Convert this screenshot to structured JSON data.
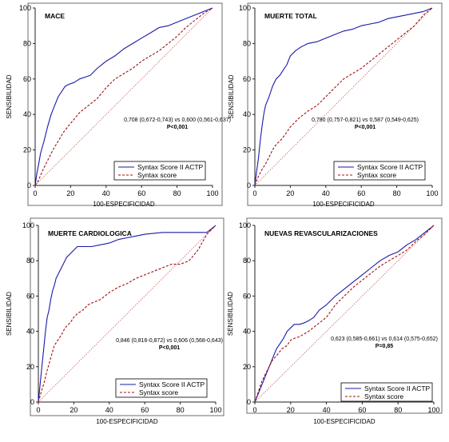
{
  "colors": {
    "actp": "#1a1aa8",
    "syntax": "#a01010",
    "diagonal": "#c86464",
    "axis": "#222222",
    "frame": "#6c6c6c"
  },
  "chart_data": [
    {
      "type": "line",
      "title": "MACE",
      "xlabel": "100-ESPECIFICIDAD",
      "ylabel": "SENSIBILIDAD",
      "xlim": [
        0,
        100
      ],
      "ylim": [
        0,
        100
      ],
      "xticks": [
        "0",
        "20",
        "40",
        "60",
        "80",
        "100"
      ],
      "yticks": [
        "0",
        "20",
        "40",
        "60",
        "80",
        "100"
      ],
      "annotation": [
        "0,708 (0,672-0,743) vs 0,600 (0,561-0,637)",
        "P<0,001"
      ],
      "legend_position": "bottom-right",
      "reference_line": [
        [
          0,
          0
        ],
        [
          100,
          100
        ]
      ],
      "series": [
        {
          "name": "Syntax Score II ACTP",
          "style": "solid",
          "x": [
            0,
            1,
            2,
            3,
            5,
            7,
            9,
            11,
            13,
            15,
            17,
            19,
            22,
            25,
            28,
            31,
            35,
            40,
            45,
            50,
            55,
            60,
            65,
            70,
            75,
            80,
            85,
            90,
            95,
            100
          ],
          "y": [
            0,
            7,
            12,
            18,
            25,
            33,
            40,
            45,
            50,
            53,
            56,
            57,
            58,
            60,
            61,
            62,
            66,
            70,
            73,
            77,
            80,
            83,
            86,
            89,
            90,
            92,
            94,
            96,
            98,
            100
          ]
        },
        {
          "name": "Syntax score",
          "style": "dashed",
          "x": [
            0,
            2,
            4,
            6,
            8,
            10,
            13,
            16,
            20,
            25,
            30,
            35,
            40,
            45,
            50,
            55,
            60,
            65,
            70,
            75,
            80,
            85,
            90,
            95,
            100
          ],
          "y": [
            0,
            3,
            8,
            12,
            16,
            20,
            25,
            30,
            35,
            41,
            45,
            49,
            55,
            60,
            63,
            66,
            70,
            73,
            76,
            80,
            84,
            89,
            93,
            97,
            100
          ]
        }
      ]
    },
    {
      "type": "line",
      "title": "MUERTE TOTAL",
      "xlabel": "100-ESPECIFICIDAD",
      "ylabel": "SENSIBILIDAD",
      "xlim": [
        0,
        100
      ],
      "ylim": [
        0,
        100
      ],
      "xticks": [
        "0",
        "20",
        "40",
        "60",
        "80",
        "100"
      ],
      "yticks": [
        "0",
        "20",
        "40",
        "60",
        "80",
        "100"
      ],
      "annotation": [
        "0,790 (0,757-0,821) vs 0,587 (0,549-0,625)",
        "P<0,001"
      ],
      "legend_position": "bottom-right",
      "reference_line": [
        [
          0,
          0
        ],
        [
          100,
          100
        ]
      ],
      "series": [
        {
          "name": "Syntax Score II ACTP",
          "style": "solid",
          "x": [
            0,
            1,
            2,
            3,
            4,
            5,
            6,
            8,
            10,
            12,
            14,
            16,
            18,
            20,
            23,
            26,
            30,
            35,
            40,
            45,
            50,
            55,
            60,
            65,
            70,
            75,
            80,
            85,
            90,
            95,
            100
          ],
          "y": [
            0,
            8,
            15,
            25,
            33,
            40,
            45,
            50,
            56,
            60,
            62,
            65,
            68,
            73,
            76,
            78,
            80,
            81,
            83,
            85,
            87,
            88,
            90,
            91,
            92,
            94,
            95,
            96,
            97,
            98,
            100
          ]
        },
        {
          "name": "Syntax score",
          "style": "dashed",
          "x": [
            0,
            2,
            4,
            6,
            8,
            10,
            12,
            15,
            18,
            20,
            25,
            30,
            35,
            40,
            45,
            50,
            55,
            60,
            65,
            70,
            75,
            80,
            85,
            90,
            95,
            100
          ],
          "y": [
            0,
            5,
            9,
            12,
            16,
            20,
            23,
            26,
            30,
            33,
            38,
            42,
            45,
            50,
            55,
            60,
            63,
            66,
            70,
            74,
            78,
            82,
            86,
            90,
            96,
            100
          ]
        }
      ]
    },
    {
      "type": "line",
      "title": "MUERTE CARDIOLOGICA",
      "xlabel": "100-ESPECIFICIDAD",
      "ylabel": "SENSIBILIDAD",
      "xlim": [
        0,
        100
      ],
      "ylim": [
        0,
        100
      ],
      "xticks": [
        "0",
        "20",
        "40",
        "60",
        "80",
        "100"
      ],
      "yticks": [
        "0",
        "20",
        "40",
        "60",
        "80",
        "100"
      ],
      "annotation": [
        "0,846 (0,816-0,872) vs 0,606 (0,568-0,643)",
        "P<0,001"
      ],
      "legend_position": "bottom-right",
      "reference_line": [
        [
          0,
          0
        ],
        [
          100,
          100
        ]
      ],
      "series": [
        {
          "name": "Syntax Score II ACTP",
          "style": "solid",
          "x": [
            0,
            1,
            2,
            3,
            4,
            5,
            6,
            7,
            8,
            9,
            10,
            12,
            14,
            16,
            18,
            20,
            22,
            25,
            30,
            35,
            40,
            45,
            50,
            55,
            60,
            70,
            80,
            90,
            95,
            100
          ],
          "y": [
            0,
            10,
            20,
            30,
            40,
            48,
            52,
            58,
            63,
            66,
            70,
            74,
            78,
            82,
            84,
            86,
            88,
            88,
            88,
            89,
            90,
            92,
            93,
            94,
            95,
            96,
            96,
            96,
            96,
            100
          ]
        },
        {
          "name": "Syntax score",
          "style": "dashed",
          "x": [
            0,
            2,
            3,
            5,
            7,
            9,
            11,
            13,
            15,
            18,
            20,
            22,
            25,
            28,
            30,
            35,
            40,
            45,
            50,
            55,
            60,
            65,
            70,
            75,
            80,
            85,
            90,
            95,
            100
          ],
          "y": [
            0,
            7,
            10,
            18,
            25,
            32,
            35,
            38,
            42,
            45,
            48,
            50,
            52,
            55,
            56,
            58,
            62,
            65,
            67,
            70,
            72,
            74,
            76,
            78,
            78,
            80,
            86,
            95,
            100
          ]
        }
      ]
    },
    {
      "type": "line",
      "title": "NUEVAS REVASCULARIZACIONES",
      "xlabel": "100-ESPECIFICIDAD",
      "ylabel": "SENSIBILIDAD",
      "xlim": [
        0,
        100
      ],
      "ylim": [
        0,
        100
      ],
      "xticks": [
        "0",
        "20",
        "40",
        "60",
        "80",
        "100"
      ],
      "yticks": [
        "0",
        "20",
        "40",
        "60",
        "80",
        "100"
      ],
      "annotation": [
        "0,623 (0,585-0,661) vs 0,614 (0,575-0,652)",
        "P=0,85"
      ],
      "legend_position": "bottom-right",
      "reference_line": [
        [
          0,
          0
        ],
        [
          100,
          100
        ]
      ],
      "series": [
        {
          "name": "Syntax Score II ACTP",
          "style": "solid",
          "x": [
            0,
            2,
            4,
            6,
            8,
            10,
            12,
            14,
            16,
            18,
            20,
            22,
            25,
            28,
            30,
            33,
            36,
            40,
            45,
            50,
            55,
            60,
            65,
            70,
            75,
            80,
            85,
            90,
            95,
            100
          ],
          "y": [
            0,
            5,
            10,
            15,
            20,
            25,
            30,
            33,
            36,
            40,
            42,
            44,
            44,
            45,
            46,
            48,
            52,
            55,
            60,
            64,
            68,
            72,
            76,
            80,
            83,
            85,
            89,
            92,
            96,
            100
          ]
        },
        {
          "name": "Syntax score",
          "style": "dashed",
          "x": [
            0,
            2,
            4,
            6,
            8,
            10,
            12,
            15,
            18,
            20,
            22,
            25,
            30,
            35,
            40,
            45,
            50,
            55,
            60,
            65,
            70,
            75,
            80,
            85,
            90,
            95,
            100
          ],
          "y": [
            0,
            6,
            12,
            16,
            20,
            24,
            26,
            30,
            32,
            35,
            36,
            37,
            40,
            44,
            48,
            55,
            60,
            65,
            69,
            73,
            77,
            80,
            83,
            86,
            91,
            95,
            100
          ]
        }
      ]
    }
  ]
}
